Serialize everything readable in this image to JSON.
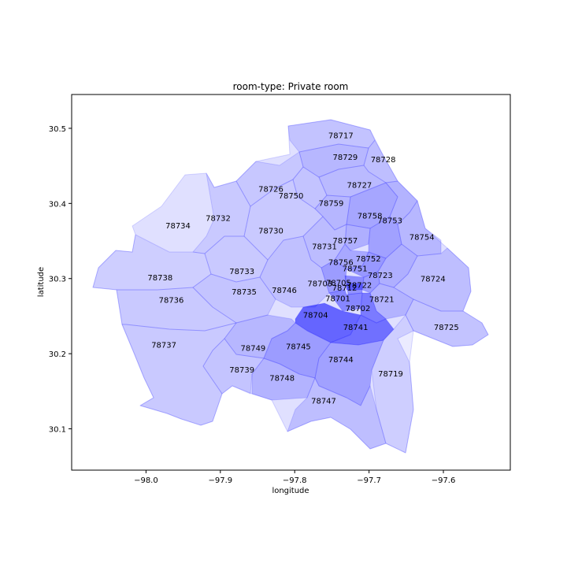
{
  "figure": {
    "title": "room-type: Private room",
    "xlabel": "longitude",
    "ylabel": "latitude"
  },
  "axes": {
    "xlim": [
      -98.1,
      -97.51
    ],
    "ylim": [
      30.045,
      30.545
    ],
    "xticks": [
      -98.0,
      -97.9,
      -97.8,
      -97.7,
      -97.6
    ],
    "xtick_labels": [
      "−98.0",
      "−97.9",
      "−97.8",
      "−97.7",
      "−97.6"
    ],
    "yticks": [
      30.1,
      30.2,
      30.3,
      30.4,
      30.5
    ],
    "ytick_labels": [
      "30.1",
      "30.2",
      "30.3",
      "30.4",
      "30.5"
    ]
  },
  "colors": {
    "fill": "#0000ff",
    "edge": "#0000ff",
    "axes_edge": "#000000"
  },
  "chart_data": {
    "type": "choropleth",
    "title": "room-type: Private room",
    "xlabel": "longitude",
    "ylabel": "latitude",
    "xlim": [
      -98.1,
      -97.51
    ],
    "ylim": [
      30.045,
      30.545
    ],
    "color_scale": "blue (alpha by value)",
    "regions": [
      {
        "zip": "78717",
        "lon": -97.738,
        "lat": 30.491,
        "intensity": 0.13
      },
      {
        "zip": "78729",
        "lon": -97.732,
        "lat": 30.462,
        "intensity": 0.18
      },
      {
        "zip": "78728",
        "lon": -97.681,
        "lat": 30.459,
        "intensity": 0.15
      },
      {
        "zip": "78727",
        "lon": -97.713,
        "lat": 30.425,
        "intensity": 0.17
      },
      {
        "zip": "78726",
        "lon": -97.832,
        "lat": 30.42,
        "intensity": 0.11
      },
      {
        "zip": "78750",
        "lon": -97.805,
        "lat": 30.411,
        "intensity": 0.13
      },
      {
        "zip": "78759",
        "lon": -97.751,
        "lat": 30.401,
        "intensity": 0.19
      },
      {
        "zip": "78758",
        "lon": -97.699,
        "lat": 30.384,
        "intensity": 0.26
      },
      {
        "zip": "78753",
        "lon": -97.672,
        "lat": 30.378,
        "intensity": 0.2
      },
      {
        "zip": "78754",
        "lon": -97.629,
        "lat": 30.356,
        "intensity": 0.18
      },
      {
        "zip": "78732",
        "lon": -97.903,
        "lat": 30.381,
        "intensity": 0.1
      },
      {
        "zip": "78734",
        "lon": -97.957,
        "lat": 30.371,
        "intensity": 0.12
      },
      {
        "zip": "78730",
        "lon": -97.832,
        "lat": 30.364,
        "intensity": 0.1
      },
      {
        "zip": "78757",
        "lon": -97.732,
        "lat": 30.351,
        "intensity": 0.22
      },
      {
        "zip": "78731",
        "lon": -97.76,
        "lat": 30.343,
        "intensity": 0.16
      },
      {
        "zip": "78752",
        "lon": -97.701,
        "lat": 30.327,
        "intensity": 0.28
      },
      {
        "zip": "78756",
        "lon": -97.738,
        "lat": 30.322,
        "intensity": 0.25
      },
      {
        "zip": "78751",
        "lon": -97.719,
        "lat": 30.314,
        "intensity": 0.32
      },
      {
        "zip": "78723",
        "lon": -97.685,
        "lat": 30.305,
        "intensity": 0.22
      },
      {
        "zip": "78738",
        "lon": -97.981,
        "lat": 30.302,
        "intensity": 0.08
      },
      {
        "zip": "78733",
        "lon": -97.871,
        "lat": 30.31,
        "intensity": 0.1
      },
      {
        "zip": "78703",
        "lon": -97.766,
        "lat": 30.294,
        "intensity": 0.3
      },
      {
        "zip": "78705",
        "lon": -97.741,
        "lat": 30.295,
        "intensity": 0.38
      },
      {
        "zip": "78722",
        "lon": -97.713,
        "lat": 30.292,
        "intensity": 0.3
      },
      {
        "zip": "78712",
        "lon": -97.733,
        "lat": 30.288,
        "intensity": 0.35
      },
      {
        "zip": "78724",
        "lon": -97.614,
        "lat": 30.3,
        "intensity": 0.15
      },
      {
        "zip": "78735",
        "lon": -97.868,
        "lat": 30.283,
        "intensity": 0.12
      },
      {
        "zip": "78746",
        "lon": -97.814,
        "lat": 30.285,
        "intensity": 0.14
      },
      {
        "zip": "78701",
        "lon": -97.742,
        "lat": 30.274,
        "intensity": 0.4
      },
      {
        "zip": "78721",
        "lon": -97.683,
        "lat": 30.273,
        "intensity": 0.2
      },
      {
        "zip": "78736",
        "lon": -97.966,
        "lat": 30.272,
        "intensity": 0.1
      },
      {
        "zip": "78702",
        "lon": -97.715,
        "lat": 30.261,
        "intensity": 0.45
      },
      {
        "zip": "78704",
        "lon": -97.772,
        "lat": 30.252,
        "intensity": 0.55
      },
      {
        "zip": "78741",
        "lon": -97.718,
        "lat": 30.236,
        "intensity": 0.5
      },
      {
        "zip": "78725",
        "lon": -97.596,
        "lat": 30.236,
        "intensity": 0.13
      },
      {
        "zip": "78737",
        "lon": -97.976,
        "lat": 30.212,
        "intensity": 0.1
      },
      {
        "zip": "78749",
        "lon": -97.856,
        "lat": 30.208,
        "intensity": 0.18
      },
      {
        "zip": "78745",
        "lon": -97.795,
        "lat": 30.21,
        "intensity": 0.3
      },
      {
        "zip": "78744",
        "lon": -97.738,
        "lat": 30.193,
        "intensity": 0.28
      },
      {
        "zip": "78739",
        "lon": -97.871,
        "lat": 30.179,
        "intensity": 0.12
      },
      {
        "zip": "78719",
        "lon": -97.671,
        "lat": 30.174,
        "intensity": 0.08
      },
      {
        "zip": "78748",
        "lon": -97.817,
        "lat": 30.168,
        "intensity": 0.2
      },
      {
        "zip": "78747",
        "lon": -97.761,
        "lat": 30.138,
        "intensity": 0.15
      }
    ]
  }
}
